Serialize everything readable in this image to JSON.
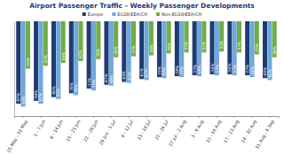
{
  "chart_data": {
    "type": "bar",
    "title": "Airport Passenger Traffic - Weekly Passenger Developments",
    "categories": [
      "25 May - 31 May",
      "1 - 7 Jun",
      "8 - 14 Jun",
      "15 - 21 Jun",
      "22 - 28 Jun",
      "29 Jun - 5 Jul",
      "6 - 12 Jul",
      "13 - 19 Jul",
      "20 - 26 Jul",
      "27 Jul - 2 Aug",
      "3 - 9 Aug",
      "10 - 16 Aug",
      "17 - 23 Aug",
      "24 - 30 Aug",
      "31 Aug - 6 Sep"
    ],
    "series": [
      {
        "name": "Europe",
        "color": "#1f3b73",
        "values": [
          -87,
          -84,
          -80,
          -76,
          -71,
          -67,
          -64,
          -61,
          -59,
          -58,
          -57,
          -56,
          -56,
          -57,
          -60
        ],
        "value_labels": [
          "-87%",
          "-84%",
          "-80%",
          "-76%",
          "-71%",
          "-67%",
          "-64%",
          "-61%",
          "-59%",
          "-58%",
          "-57%",
          "-56%",
          "-56%",
          "-57%",
          "-60%"
        ]
      },
      {
        "name": "EU28/EEA/CH",
        "color": "#6fa8dc",
        "values": [
          -90,
          -87,
          -82,
          -78,
          -73,
          -68,
          -65,
          -62,
          -60,
          -59,
          -58,
          -57,
          -57,
          -59,
          -62
        ],
        "value_labels": [
          "-90%",
          "-87%",
          "-82%",
          "-78%",
          "-73%",
          "-68%",
          "-65%",
          "-62%",
          "-60%",
          "-59%",
          "-58%",
          "-57%",
          "-57%",
          "-59%",
          "-62%"
        ]
      },
      {
        "name": "Non-EU28/EEA/CH",
        "color": "#70ad47",
        "values": [
          -50,
          -47,
          -44,
          -42,
          -40,
          -38,
          -37,
          -36,
          -34,
          -33,
          -33,
          -32,
          -33,
          -35,
          -38
        ],
        "value_labels": [
          "-50%",
          "-47%",
          "-44%",
          "-42%",
          "-40%",
          "-38%",
          "-37%",
          "-36%",
          "-34%",
          "-33%",
          "-33%",
          "-32%",
          "-33%",
          "-35%",
          "-38%"
        ]
      }
    ],
    "ylim": [
      -100,
      0
    ],
    "data_labels": true,
    "tick_labels": "x",
    "legend": "top",
    "grid": false
  }
}
